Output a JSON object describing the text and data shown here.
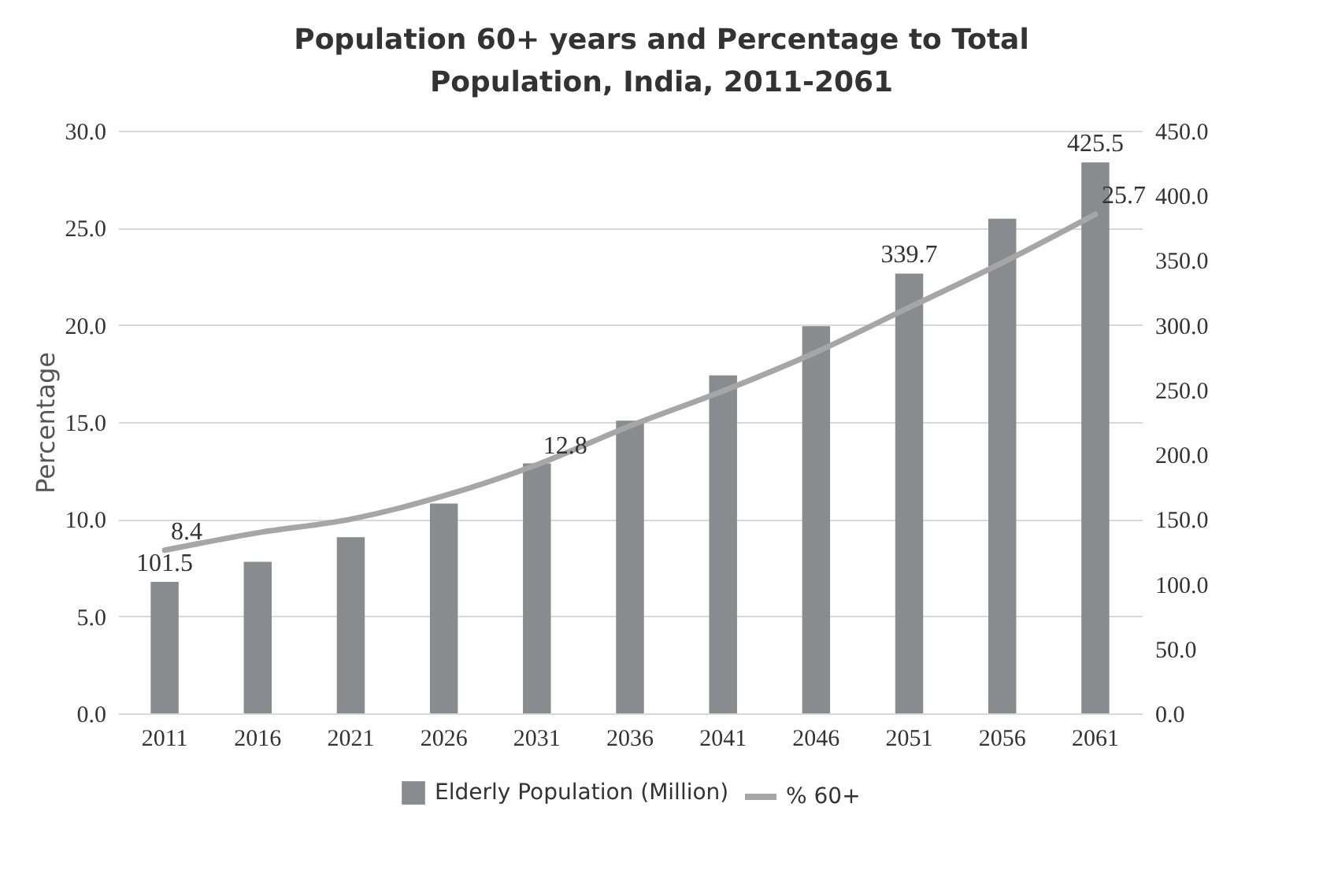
{
  "chart_data": {
    "type": "bar",
    "title": "Population 60+ years and Percentage to Total Population, India, 2011-2061",
    "ylabel": "Percentage",
    "categories": [
      "2011",
      "2016",
      "2021",
      "2026",
      "2031",
      "2036",
      "2041",
      "2046",
      "2051",
      "2056",
      "2061"
    ],
    "series": [
      {
        "name": "Elderly Population (Million)",
        "axis": "y2",
        "color": "#8a8b8f",
        "values": [
          101.5,
          117,
          136,
          162,
          193,
          226,
          261,
          299,
          339.7,
          382,
          425.5
        ],
        "value_labels": [
          "101.5",
          null,
          null,
          null,
          null,
          null,
          null,
          null,
          "339.7",
          null,
          "425.5"
        ]
      },
      {
        "name": "% 60+",
        "type": "line",
        "axis": "y",
        "color": "#a6a6a6",
        "values": [
          8.4,
          9.3,
          10.0,
          11.2,
          12.8,
          14.8,
          16.6,
          18.6,
          20.9,
          23.2,
          25.7
        ],
        "value_labels": [
          "8.4",
          null,
          null,
          null,
          "12.8",
          null,
          null,
          null,
          null,
          null,
          "25.7"
        ]
      }
    ],
    "ylim": [
      0,
      30
    ],
    "yticks": [
      {
        "value": 0,
        "label": "0.0"
      },
      {
        "value": 5,
        "label": "5.0"
      },
      {
        "value": 10,
        "label": "10.0"
      },
      {
        "value": 15,
        "label": "15.0"
      },
      {
        "value": 20,
        "label": "20.0"
      },
      {
        "value": 25,
        "label": "25.0"
      },
      {
        "value": 30,
        "label": "30.0"
      }
    ],
    "y2lim": [
      0,
      450
    ],
    "y2ticks": [
      {
        "value": 0,
        "label": "0.0"
      },
      {
        "value": 50,
        "label": "50.0"
      },
      {
        "value": 100,
        "label": "100.0"
      },
      {
        "value": 150,
        "label": "150.0"
      },
      {
        "value": 200,
        "label": "200.0"
      },
      {
        "value": 250,
        "label": "250.0"
      },
      {
        "value": 300,
        "label": "300.0"
      },
      {
        "value": 350,
        "label": "350.0"
      },
      {
        "value": 400,
        "label": "400.0"
      },
      {
        "value": 450,
        "label": "450.0"
      }
    ],
    "grid": "y",
    "legend": "bottom"
  }
}
